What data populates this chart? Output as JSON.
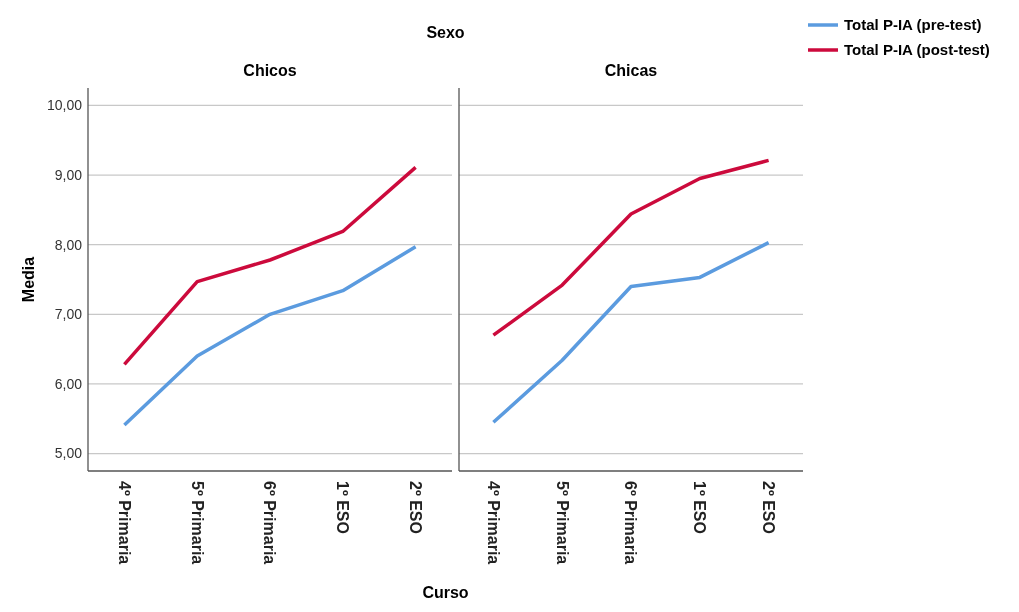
{
  "chart_data": [
    {
      "type": "line",
      "title": "Chicos",
      "annotations": [
        "Sexo"
      ],
      "xlabel": "Curso",
      "ylabel": "Media",
      "categories": [
        "4º Primaria",
        "5º Primaria",
        "6º Primaria",
        "1º ESO",
        "2º ESO"
      ],
      "series": [
        {
          "name": "Total P-IA (pre-test)",
          "color": "#5b9bdf",
          "values": [
            5.41,
            6.4,
            7.0,
            7.34,
            7.97
          ]
        },
        {
          "name": "Total P-IA (post-test)",
          "color": "#cc0a3c",
          "values": [
            6.28,
            7.47,
            7.78,
            8.19,
            9.11
          ]
        }
      ],
      "ylim": [
        4.75,
        10.25
      ],
      "yticks": [
        {
          "value": 5,
          "label": "5,00"
        },
        {
          "value": 6,
          "label": "6,00"
        },
        {
          "value": 7,
          "label": "7,00"
        },
        {
          "value": 8,
          "label": "8,00"
        },
        {
          "value": 9,
          "label": "9,00"
        },
        {
          "value": 10,
          "label": "10,00"
        }
      ],
      "grid": "y",
      "legend": "right"
    },
    {
      "type": "line",
      "title": "Chicas",
      "categories": [
        "4º Primaria",
        "5º Primaria",
        "6º Primaria",
        "1º ESO",
        "2º ESO"
      ],
      "series": [
        {
          "color": "#5b9bdf",
          "values": [
            5.45,
            6.34,
            7.4,
            7.53,
            8.03
          ]
        },
        {
          "color": "#cc0a3c",
          "values": [
            6.7,
            7.42,
            8.44,
            8.95,
            9.21
          ]
        }
      ],
      "ylim": [
        4.75,
        10.25
      ],
      "yticks": [
        5,
        6,
        7,
        8,
        9,
        10
      ],
      "grid": "y",
      "tick_labels": "x",
      "legend": false
    }
  ]
}
